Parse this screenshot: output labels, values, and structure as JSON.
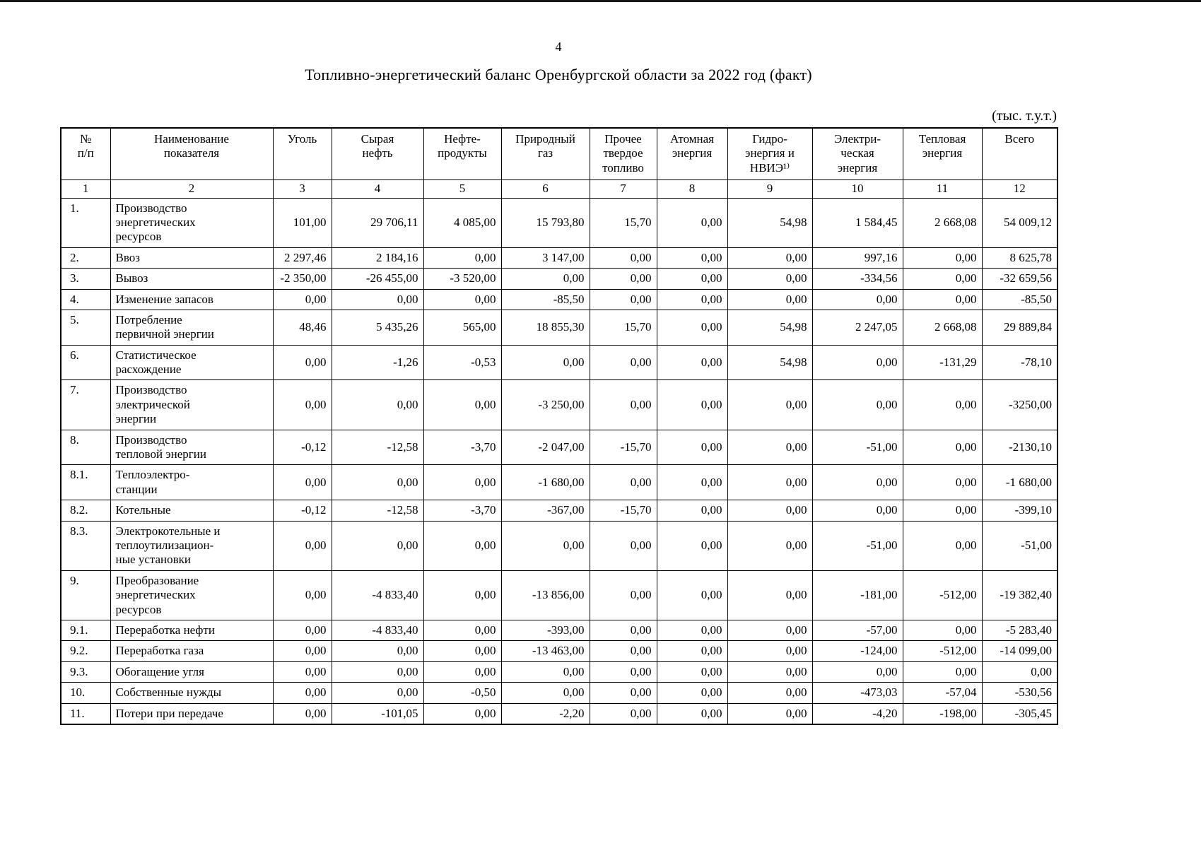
{
  "page": {
    "number": "4",
    "title": "Топливно-энергетический баланс Оренбургской области за 2022 год (факт)",
    "units_note": "(тыс. т.у.т.)"
  },
  "table": {
    "columns": [
      {
        "label": "№\nп/п",
        "num": "1"
      },
      {
        "label": "Наименование\nпоказателя",
        "num": "2"
      },
      {
        "label": "Уголь",
        "num": "3"
      },
      {
        "label": "Сырая\nнефть",
        "num": "4"
      },
      {
        "label": "Нефте-\nпродукты",
        "num": "5"
      },
      {
        "label": "Природный\nгаз",
        "num": "6"
      },
      {
        "label": "Прочее\nтвердое\nтопливо",
        "num": "7"
      },
      {
        "label": "Атомная\nэнергия",
        "num": "8"
      },
      {
        "label": "Гидро-\nэнергия и\nНВИЭ¹⁾",
        "num": "9"
      },
      {
        "label": "Электри-\nческая\nэнергия",
        "num": "10"
      },
      {
        "label": "Тепловая\nэнергия",
        "num": "11"
      },
      {
        "label": "Всего",
        "num": "12"
      }
    ],
    "rows": [
      {
        "num": "1.",
        "name": "Производство\nэнергетических\nресурсов",
        "values": [
          "101,00",
          "29 706,11",
          "4 085,00",
          "15 793,80",
          "15,70",
          "0,00",
          "54,98",
          "1 584,45",
          "2 668,08",
          "54 009,12"
        ]
      },
      {
        "num": "2.",
        "name": "Ввоз",
        "values": [
          "2 297,46",
          "2 184,16",
          "0,00",
          "3 147,00",
          "0,00",
          "0,00",
          "0,00",
          "997,16",
          "0,00",
          "8 625,78"
        ]
      },
      {
        "num": "3.",
        "name": "Вывоз",
        "values": [
          "-2 350,00",
          "-26 455,00",
          "-3 520,00",
          "0,00",
          "0,00",
          "0,00",
          "0,00",
          "-334,56",
          "0,00",
          "-32 659,56"
        ]
      },
      {
        "num": "4.",
        "name": "Изменение запасов",
        "values": [
          "0,00",
          "0,00",
          "0,00",
          "-85,50",
          "0,00",
          "0,00",
          "0,00",
          "0,00",
          "0,00",
          "-85,50"
        ]
      },
      {
        "num": "5.",
        "name": "Потребление\nпервичной энергии",
        "values": [
          "48,46",
          "5 435,26",
          "565,00",
          "18 855,30",
          "15,70",
          "0,00",
          "54,98",
          "2 247,05",
          "2 668,08",
          "29 889,84"
        ]
      },
      {
        "num": "6.",
        "name": "Статистическое\nрасхождение",
        "values": [
          "0,00",
          "-1,26",
          "-0,53",
          "0,00",
          "0,00",
          "0,00",
          "54,98",
          "0,00",
          "-131,29",
          "-78,10"
        ]
      },
      {
        "num": "7.",
        "name": "Производство\nэлектрической\nэнергии",
        "values": [
          "0,00",
          "0,00",
          "0,00",
          "-3 250,00",
          "0,00",
          "0,00",
          "0,00",
          "0,00",
          "0,00",
          "-3250,00"
        ]
      },
      {
        "num": "8.",
        "name": "Производство\nтепловой энергии",
        "values": [
          "-0,12",
          "-12,58",
          "-3,70",
          "-2 047,00",
          "-15,70",
          "0,00",
          "0,00",
          "-51,00",
          "0,00",
          "-2130,10"
        ]
      },
      {
        "num": "8.1.",
        "name": "Теплоэлектро-\nстанции",
        "values": [
          "0,00",
          "0,00",
          "0,00",
          "-1 680,00",
          "0,00",
          "0,00",
          "0,00",
          "0,00",
          "0,00",
          "-1 680,00"
        ]
      },
      {
        "num": "8.2.",
        "name": "Котельные",
        "values": [
          "-0,12",
          "-12,58",
          "-3,70",
          "-367,00",
          "-15,70",
          "0,00",
          "0,00",
          "0,00",
          "0,00",
          "-399,10"
        ]
      },
      {
        "num": "8.3.",
        "name": "Электрокотельные и\nтеплоутилизацион-\nные установки",
        "values": [
          "0,00",
          "0,00",
          "0,00",
          "0,00",
          "0,00",
          "0,00",
          "0,00",
          "-51,00",
          "0,00",
          "-51,00"
        ]
      },
      {
        "num": "9.",
        "name": "Преобразование\nэнергетических\nресурсов",
        "values": [
          "0,00",
          "-4 833,40",
          "0,00",
          "-13 856,00",
          "0,00",
          "0,00",
          "0,00",
          "-181,00",
          "-512,00",
          "-19 382,40"
        ]
      },
      {
        "num": "9.1.",
        "name": "Переработка нефти",
        "values": [
          "0,00",
          "-4 833,40",
          "0,00",
          "-393,00",
          "0,00",
          "0,00",
          "0,00",
          "-57,00",
          "0,00",
          "-5 283,40"
        ]
      },
      {
        "num": "9.2.",
        "name": "Переработка газа",
        "values": [
          "0,00",
          "0,00",
          "0,00",
          "-13 463,00",
          "0,00",
          "0,00",
          "0,00",
          "-124,00",
          "-512,00",
          "-14 099,00"
        ]
      },
      {
        "num": "9.3.",
        "name": "Обогащение угля",
        "values": [
          "0,00",
          "0,00",
          "0,00",
          "0,00",
          "0,00",
          "0,00",
          "0,00",
          "0,00",
          "0,00",
          "0,00"
        ]
      },
      {
        "num": "10.",
        "name": "Собственные нужды",
        "values": [
          "0,00",
          "0,00",
          "-0,50",
          "0,00",
          "0,00",
          "0,00",
          "0,00",
          "-473,03",
          "-57,04",
          "-530,56"
        ]
      },
      {
        "num": "11.",
        "name": "Потери при передаче",
        "values": [
          "0,00",
          "-101,05",
          "0,00",
          "-2,20",
          "0,00",
          "0,00",
          "0,00",
          "-4,20",
          "-198,00",
          "-305,45"
        ]
      }
    ]
  }
}
